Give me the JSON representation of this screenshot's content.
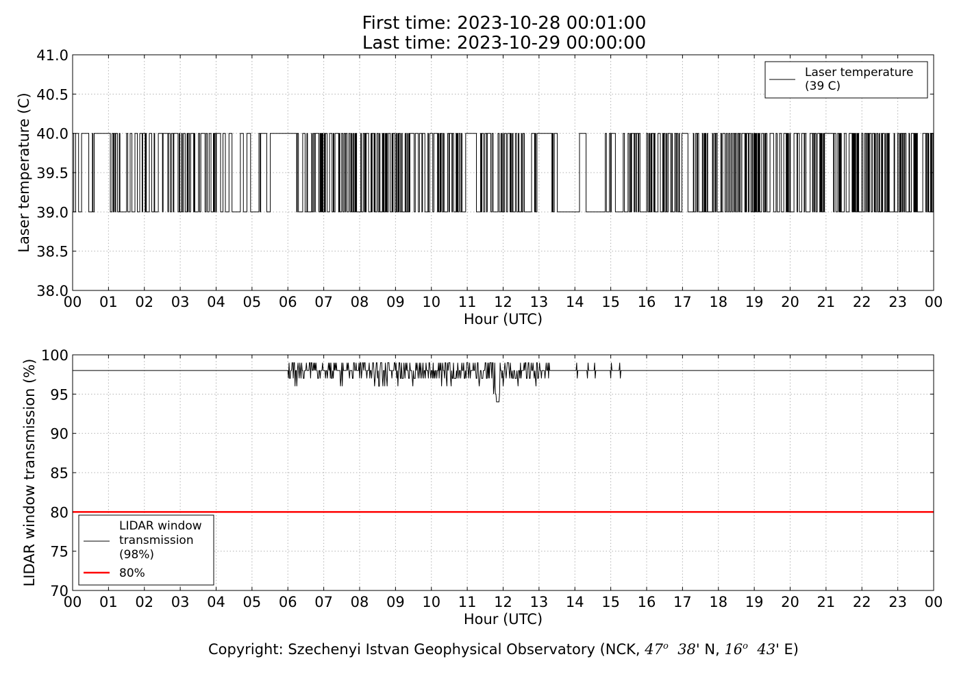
{
  "title": {
    "line1": "First time: 2023-10-28 00:01:00",
    "line2": "Last time: 2023-10-29 00:00:00"
  },
  "copyright": {
    "prefix": "Copyright: Szechenyi Istvan Geophysical Observatory (NCK, ",
    "lat_deg": "47",
    "lat_min": "38",
    "lat_dir": "' N, ",
    "lon_deg": "16",
    "lon_min": "43",
    "lon_dir": "' E)",
    "degree_sup": "o"
  },
  "colors": {
    "series": "#000000",
    "threshold": "#ff0000",
    "grid": "#b0b0b0"
  },
  "chart_data": [
    {
      "type": "line",
      "xlabel": "Hour (UTC)",
      "ylabel": "Laser temperature (C)",
      "xlim": [
        0,
        24
      ],
      "ylim": [
        38.0,
        41.0
      ],
      "x_ticks": [
        "00",
        "01",
        "02",
        "03",
        "04",
        "05",
        "06",
        "07",
        "08",
        "09",
        "10",
        "11",
        "12",
        "13",
        "14",
        "15",
        "16",
        "17",
        "18",
        "19",
        "20",
        "21",
        "22",
        "23",
        "00"
      ],
      "y_ticks": [
        "38.0",
        "38.5",
        "39.0",
        "39.5",
        "40.0",
        "40.5",
        "41.0"
      ],
      "grid": true,
      "legend_position": "top-right",
      "series": [
        {
          "name": "Laser temperature\n(39 C)",
          "legend_lines": [
            "Laser temperature",
            "(39 C)"
          ],
          "levels": [
            39.0,
            40.0
          ],
          "sampling_interval_hours": 0.0167,
          "steady_40_intervals": [
            [
              0.7,
              1.0
            ],
            [
              5.5,
              6.2
            ],
            [
              10.95,
              11.25
            ],
            [
              13.05,
              13.35
            ],
            [
              20.95,
              21.2
            ]
          ],
          "steady_39_intervals": [
            [
              13.5,
              14.1
            ],
            [
              14.3,
              14.8
            ]
          ],
          "sparse_intervals": [
            [
              0.0,
              1.1
            ],
            [
              4.4,
              6.2
            ],
            [
              12.6,
              15.3
            ]
          ]
        }
      ]
    },
    {
      "type": "line",
      "xlabel": "Hour (UTC)",
      "ylabel": "LIDAR window transmission (%)",
      "xlim": [
        0,
        24
      ],
      "ylim": [
        70,
        100
      ],
      "x_ticks": [
        "00",
        "01",
        "02",
        "03",
        "04",
        "05",
        "06",
        "07",
        "08",
        "09",
        "10",
        "11",
        "12",
        "13",
        "14",
        "15",
        "16",
        "17",
        "18",
        "19",
        "20",
        "21",
        "22",
        "23",
        "00"
      ],
      "y_ticks": [
        "70",
        "75",
        "80",
        "85",
        "90",
        "95",
        "100"
      ],
      "grid": true,
      "legend_position": "bottom-left",
      "series": [
        {
          "name": "LIDAR window\ntransmission\n(98%)",
          "legend_lines": [
            "LIDAR window",
            "transmission",
            "(98%)"
          ],
          "baseline": 98,
          "noisy_interval": [
            6.0,
            13.3
          ],
          "sparse_blips": [
            14.05,
            14.35,
            14.55,
            15.0,
            15.25
          ],
          "min_value": 94.0,
          "min_at": 11.85
        },
        {
          "name": "80%",
          "legend_lines": [
            "80%"
          ],
          "constant": 80
        }
      ]
    }
  ]
}
